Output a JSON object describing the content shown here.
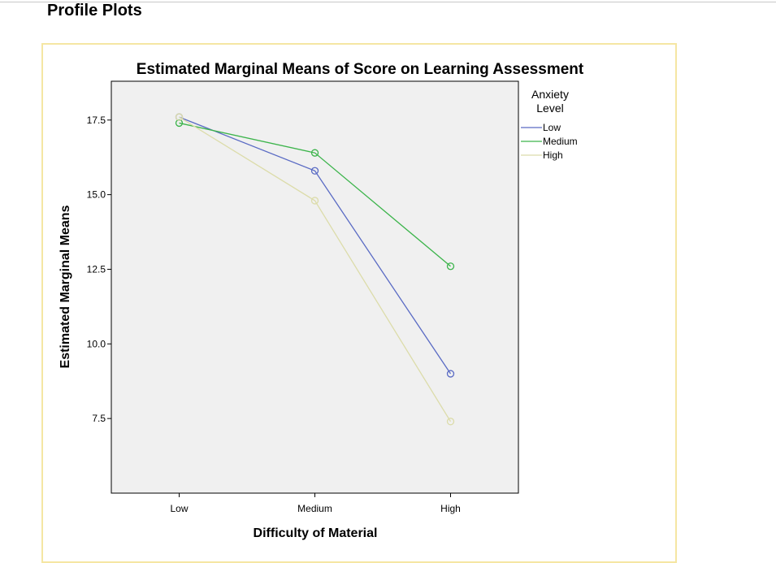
{
  "page": {
    "section_title": "Profile Plots"
  },
  "chart_data": {
    "type": "line",
    "title": "Estimated Marginal Means of Score on Learning Assessment",
    "xlabel": "Difficulty of Material",
    "ylabel": "Estimated Marginal Means",
    "categories": [
      "Low",
      "Medium",
      "High"
    ],
    "y_ticks": [
      "7.5",
      "10.0",
      "12.5",
      "15.0",
      "17.5"
    ],
    "ylim": [
      5.0,
      18.8
    ],
    "grid": false,
    "legend": {
      "title_line1": "Anxiety",
      "title_line2": "Level",
      "placement": "right-top"
    },
    "series": [
      {
        "name": "Low",
        "color": "#5a6bc4",
        "values": [
          17.6,
          15.8,
          9.0
        ]
      },
      {
        "name": "Medium",
        "color": "#3cb44b",
        "values": [
          17.4,
          16.4,
          12.6
        ]
      },
      {
        "name": "High",
        "color": "#dcdcaa",
        "values": [
          17.6,
          14.8,
          7.4
        ]
      }
    ]
  }
}
